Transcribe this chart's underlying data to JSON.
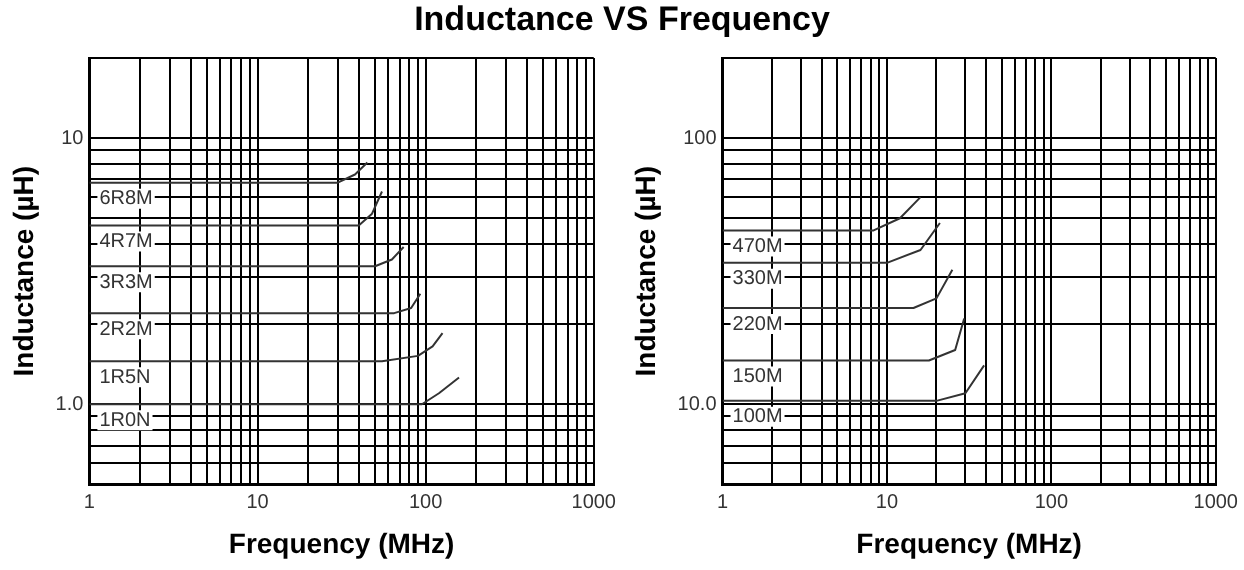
{
  "chart_data": [
    {
      "type": "line",
      "title": "Inductance VS Frequency",
      "xlabel": "Frequency (MHz)",
      "ylabel": "Inductance (µH)",
      "log": "xy",
      "grid": true,
      "marker": "none",
      "line_style": "solid",
      "xlim": [
        1,
        1000
      ],
      "xticks": [
        1,
        {
          "value": 2,
          "label": null
        },
        {
          "value": 3,
          "label": null
        },
        {
          "value": 4,
          "label": null
        },
        {
          "value": 5,
          "label": null
        },
        {
          "value": 6,
          "label": null
        },
        {
          "value": 7,
          "label": null
        },
        {
          "value": 8,
          "label": null
        },
        {
          "value": 9,
          "label": null
        },
        10,
        {
          "value": 20,
          "label": null
        },
        {
          "value": 30,
          "label": null
        },
        {
          "value": 40,
          "label": null
        },
        {
          "value": 50,
          "label": null
        },
        {
          "value": 60,
          "label": null
        },
        {
          "value": 70,
          "label": null
        },
        {
          "value": 80,
          "label": null
        },
        {
          "value": 90,
          "label": null
        },
        100,
        {
          "value": 200,
          "label": null
        },
        {
          "value": 300,
          "label": null
        },
        {
          "value": 400,
          "label": null
        },
        {
          "value": 500,
          "label": null
        },
        {
          "value": 600,
          "label": null
        },
        {
          "value": 700,
          "label": null
        },
        {
          "value": 800,
          "label": null
        },
        {
          "value": 900,
          "label": null
        },
        1000
      ],
      "ylim": [
        0.5,
        20
      ],
      "yticks": [
        {
          "value": 0.5,
          "label": null
        },
        {
          "value": 0.6,
          "label": null
        },
        {
          "value": 0.7,
          "label": null
        },
        {
          "value": 0.8,
          "label": null
        },
        {
          "value": 0.9,
          "label": null
        },
        {
          "value": 1,
          "label": "1.0"
        },
        {
          "value": 2,
          "label": null
        },
        {
          "value": 3,
          "label": null
        },
        {
          "value": 4,
          "label": null
        },
        {
          "value": 5,
          "label": null
        },
        {
          "value": 6,
          "label": null
        },
        {
          "value": 7,
          "label": null
        },
        {
          "value": 8,
          "label": null
        },
        {
          "value": 9,
          "label": null
        },
        10,
        {
          "value": 20,
          "label": null
        }
      ],
      "series": [
        {
          "name": "6R8M",
          "color": "#333333",
          "x": [
            1,
            30,
            38,
            45
          ],
          "values": [
            6.8,
            6.8,
            7.3,
            8.1
          ]
        },
        {
          "name": "4R7M",
          "color": "#333333",
          "x": [
            1,
            40,
            48,
            55
          ],
          "values": [
            4.7,
            4.7,
            5.2,
            6.3
          ]
        },
        {
          "name": "3R3M",
          "color": "#333333",
          "x": [
            1,
            50,
            63,
            74
          ],
          "values": [
            3.3,
            3.3,
            3.5,
            3.9
          ]
        },
        {
          "name": "2R2M",
          "color": "#333333",
          "x": [
            1,
            65,
            82,
            93
          ],
          "values": [
            2.2,
            2.2,
            2.3,
            2.6
          ]
        },
        {
          "name": "1R5N",
          "color": "#333333",
          "x": [
            1,
            55,
            90,
            110,
            126
          ],
          "values": [
            1.45,
            1.45,
            1.52,
            1.65,
            1.85
          ]
        },
        {
          "name": "1R0N",
          "color": "#333333",
          "x": [
            1,
            95,
            120,
            158
          ],
          "values": [
            1,
            1,
            1.1,
            1.26
          ]
        }
      ]
    },
    {
      "type": "line",
      "xlabel": "Frequency (MHz)",
      "ylabel": "Inductance (µH)",
      "log": "xy",
      "grid": true,
      "marker": "none",
      "line_style": "solid",
      "xlim": [
        1,
        1000
      ],
      "xticks": [
        1,
        {
          "value": 2,
          "label": null
        },
        {
          "value": 3,
          "label": null
        },
        {
          "value": 4,
          "label": null
        },
        {
          "value": 5,
          "label": null
        },
        {
          "value": 6,
          "label": null
        },
        {
          "value": 7,
          "label": null
        },
        {
          "value": 8,
          "label": null
        },
        {
          "value": 9,
          "label": null
        },
        10,
        {
          "value": 20,
          "label": null
        },
        {
          "value": 30,
          "label": null
        },
        {
          "value": 40,
          "label": null
        },
        {
          "value": 50,
          "label": null
        },
        {
          "value": 60,
          "label": null
        },
        {
          "value": 70,
          "label": null
        },
        {
          "value": 80,
          "label": null
        },
        {
          "value": 90,
          "label": null
        },
        100,
        {
          "value": 200,
          "label": null
        },
        {
          "value": 300,
          "label": null
        },
        {
          "value": 400,
          "label": null
        },
        {
          "value": 500,
          "label": null
        },
        {
          "value": 600,
          "label": null
        },
        {
          "value": 700,
          "label": null
        },
        {
          "value": 800,
          "label": null
        },
        {
          "value": 900,
          "label": null
        },
        1000
      ],
      "ylim": [
        5,
        200
      ],
      "yticks": [
        {
          "value": 5,
          "label": null
        },
        {
          "value": 6,
          "label": null
        },
        {
          "value": 7,
          "label": null
        },
        {
          "value": 8,
          "label": null
        },
        {
          "value": 9,
          "label": null
        },
        {
          "value": 10,
          "label": "10.0"
        },
        {
          "value": 20,
          "label": null
        },
        {
          "value": 30,
          "label": null
        },
        {
          "value": 40,
          "label": null
        },
        {
          "value": 50,
          "label": null
        },
        {
          "value": 60,
          "label": null
        },
        {
          "value": 70,
          "label": null
        },
        {
          "value": 80,
          "label": null
        },
        {
          "value": 90,
          "label": null
        },
        100,
        {
          "value": 200,
          "label": null
        }
      ],
      "series": [
        {
          "name": "470M",
          "color": "#333333",
          "x": [
            1,
            8.3,
            12,
            16
          ],
          "values": [
            45,
            45,
            50,
            60
          ]
        },
        {
          "name": "330M",
          "color": "#333333",
          "x": [
            1,
            10,
            16,
            21
          ],
          "values": [
            34,
            34,
            38,
            48
          ]
        },
        {
          "name": "220M",
          "color": "#333333",
          "x": [
            1,
            14.5,
            20,
            25
          ],
          "values": [
            23,
            23,
            25,
            32
          ]
        },
        {
          "name": "150M",
          "color": "#333333",
          "x": [
            1,
            18,
            26,
            29.5
          ],
          "values": [
            14.6,
            14.6,
            16,
            21
          ]
        },
        {
          "name": "100M",
          "color": "#333333",
          "x": [
            1,
            20,
            30,
            39
          ],
          "values": [
            10.3,
            10.3,
            11,
            14
          ]
        }
      ]
    }
  ]
}
